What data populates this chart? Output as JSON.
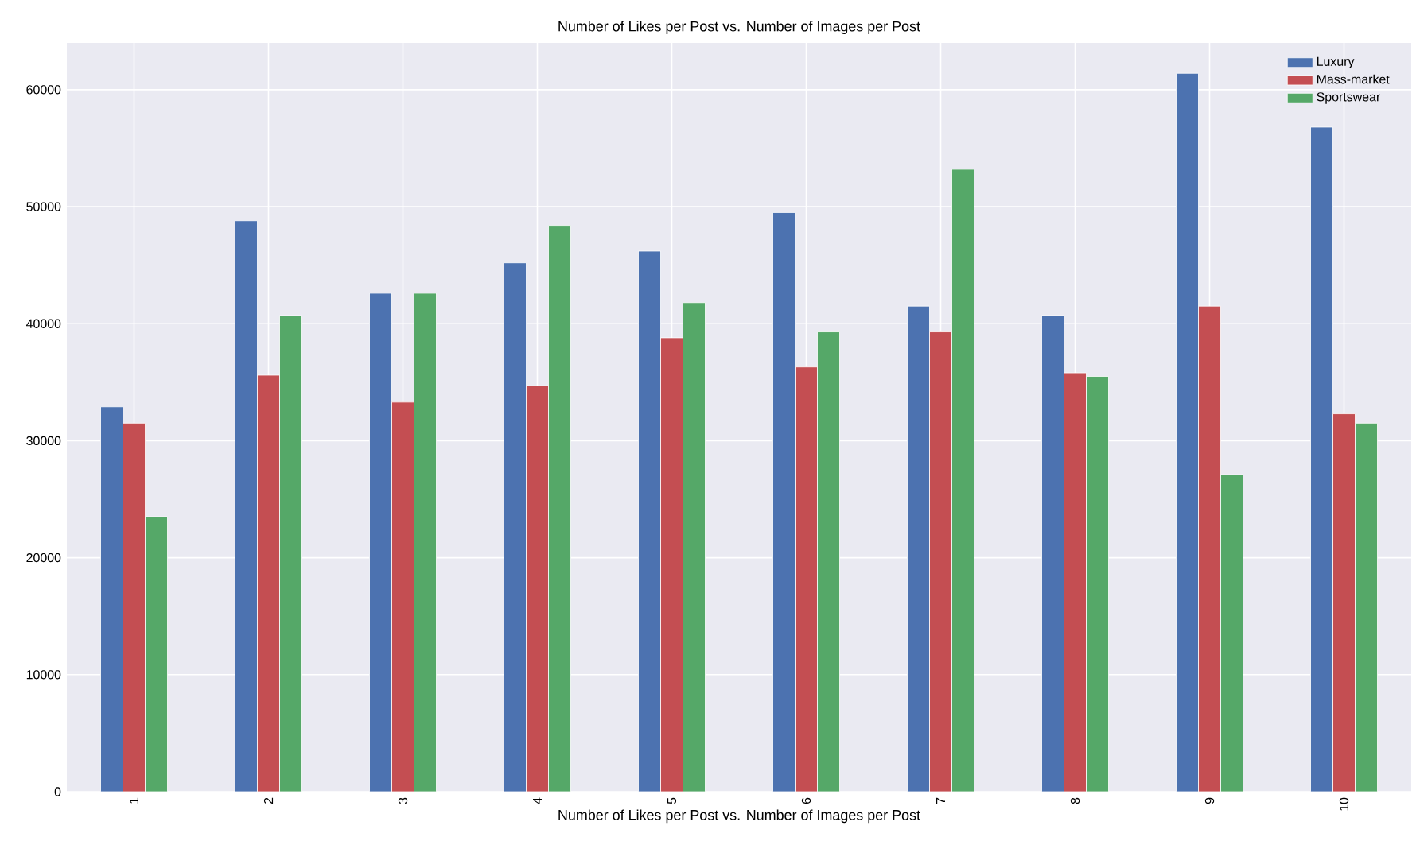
{
  "chart_data": {
    "type": "bar",
    "title": "Number of Likes per Post vs. Number of Images per Post",
    "xlabel": "Number of Likes per Post vs. Number of Images per Post",
    "categories": [
      "1",
      "2",
      "3",
      "4",
      "5",
      "6",
      "7",
      "8",
      "9",
      "10"
    ],
    "series": [
      {
        "name": "Luxury",
        "color": "#4c72b0",
        "values": [
          32900,
          48800,
          42600,
          45200,
          46200,
          49500,
          41500,
          40700,
          61400,
          56800
        ]
      },
      {
        "name": "Mass-market",
        "color": "#c44e52",
        "values": [
          31500,
          35600,
          33300,
          34700,
          38800,
          36300,
          39300,
          35800,
          41500,
          32300
        ]
      },
      {
        "name": "Sportswear",
        "color": "#55a868",
        "values": [
          23500,
          40700,
          42600,
          48400,
          41800,
          39300,
          53200,
          35500,
          27100,
          31500
        ]
      }
    ],
    "ylim": [
      0,
      64000
    ],
    "yticks": [
      0,
      10000,
      20000,
      30000,
      40000,
      50000,
      60000
    ],
    "grid": true,
    "legend": "top right"
  }
}
